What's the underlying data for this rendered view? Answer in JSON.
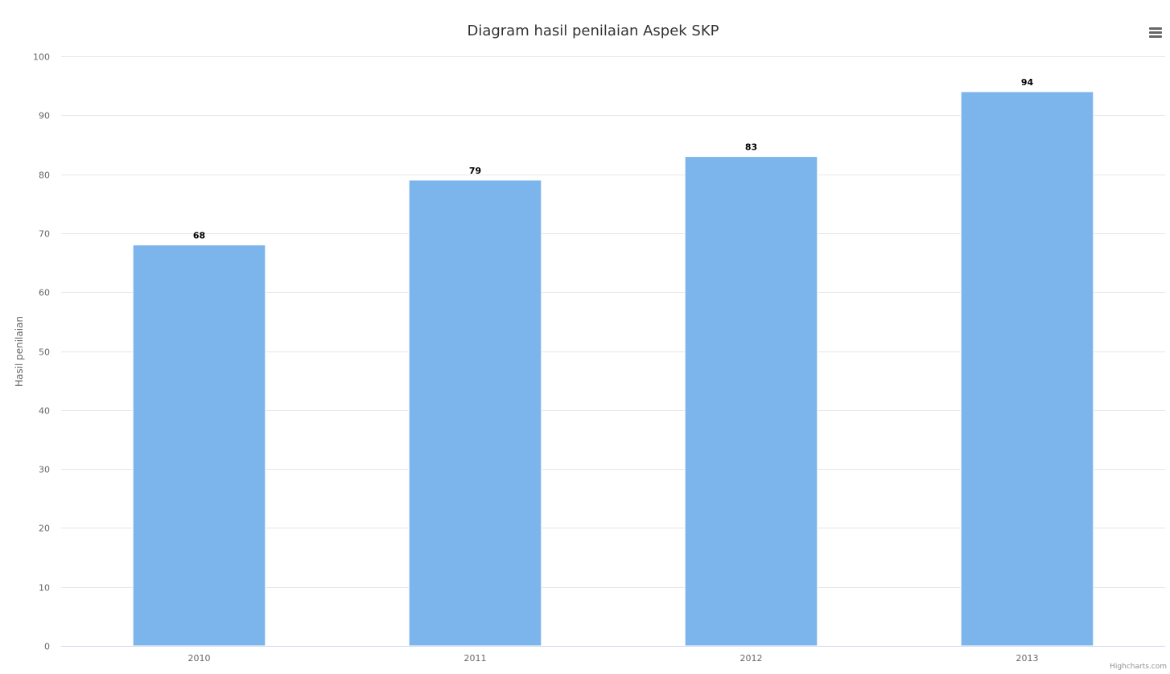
{
  "chart_data": {
    "type": "bar",
    "title": "Diagram hasil penilaian Aspek SKP",
    "ylabel": "Hasil penilaian",
    "xlabel": "",
    "categories": [
      "2010",
      "2011",
      "2012",
      "2013"
    ],
    "values": [
      68,
      79,
      83,
      94
    ],
    "ylim": [
      0,
      100
    ],
    "yticks": [
      0,
      10,
      20,
      30,
      40,
      50,
      60,
      70,
      80,
      90,
      100
    ],
    "grid": true,
    "data_labels": true,
    "legend": false,
    "bar_color": "#7cb5ec"
  },
  "menu": {
    "icon": "hamburger-menu-icon"
  },
  "credits": {
    "label": "Highcharts.com"
  }
}
